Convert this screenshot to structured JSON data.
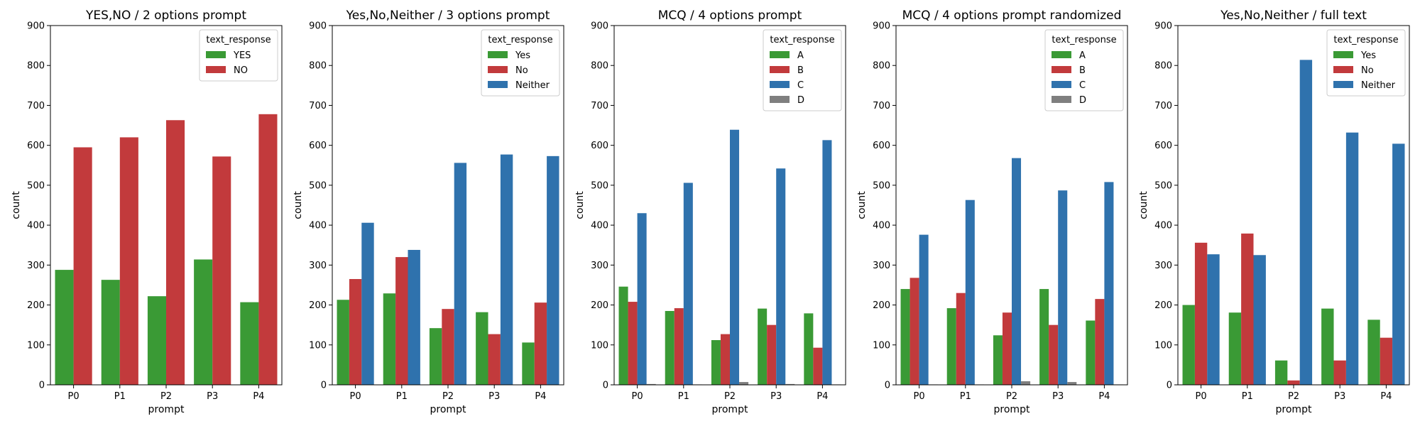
{
  "chart_data": [
    {
      "type": "bar",
      "title": "YES,NO / 2 options prompt",
      "xlabel": "prompt",
      "ylabel": "count",
      "ylim": [
        0,
        900
      ],
      "yticks": [
        0,
        100,
        200,
        300,
        400,
        500,
        600,
        700,
        800,
        900
      ],
      "categories": [
        "P0",
        "P1",
        "P2",
        "P3",
        "P4"
      ],
      "legend_title": "text_response",
      "legend_position": "top-right",
      "series": [
        {
          "name": "YES",
          "color": "#3a9a35",
          "values": [
            288,
            263,
            222,
            314,
            207
          ]
        },
        {
          "name": "NO",
          "color": "#c23a3c",
          "values": [
            595,
            620,
            663,
            572,
            678
          ]
        }
      ]
    },
    {
      "type": "bar",
      "title": "Yes,No,Neither / 3 options prompt",
      "xlabel": "prompt",
      "ylabel": "count",
      "ylim": [
        0,
        900
      ],
      "yticks": [
        0,
        100,
        200,
        300,
        400,
        500,
        600,
        700,
        800,
        900
      ],
      "categories": [
        "P0",
        "P1",
        "P2",
        "P3",
        "P4"
      ],
      "legend_title": "text_response",
      "legend_position": "top-right",
      "series": [
        {
          "name": "Yes",
          "color": "#3a9a35",
          "values": [
            213,
            229,
            142,
            182,
            106
          ]
        },
        {
          "name": "No",
          "color": "#c23a3c",
          "values": [
            265,
            320,
            190,
            127,
            206
          ]
        },
        {
          "name": "Neither",
          "color": "#2f72ad",
          "values": [
            406,
            338,
            556,
            577,
            573
          ]
        }
      ]
    },
    {
      "type": "bar",
      "title": "MCQ / 4 options prompt",
      "xlabel": "prompt",
      "ylabel": "count",
      "ylim": [
        0,
        900
      ],
      "yticks": [
        0,
        100,
        200,
        300,
        400,
        500,
        600,
        700,
        800,
        900
      ],
      "categories": [
        "P0",
        "P1",
        "P2",
        "P3",
        "P4"
      ],
      "legend_title": "text_response",
      "legend_position": "top-right",
      "series": [
        {
          "name": "A",
          "color": "#3a9a35",
          "values": [
            246,
            185,
            112,
            191,
            179
          ]
        },
        {
          "name": "B",
          "color": "#c23a3c",
          "values": [
            208,
            192,
            127,
            150,
            93
          ]
        },
        {
          "name": "C",
          "color": "#2f72ad",
          "values": [
            430,
            506,
            639,
            542,
            613
          ]
        },
        {
          "name": "D",
          "color": "#7f7f7f",
          "values": [
            2,
            1,
            7,
            2,
            1
          ]
        }
      ]
    },
    {
      "type": "bar",
      "title": "MCQ / 4 options prompt randomized",
      "xlabel": "prompt",
      "ylabel": "count",
      "ylim": [
        0,
        900
      ],
      "yticks": [
        0,
        100,
        200,
        300,
        400,
        500,
        600,
        700,
        800,
        900
      ],
      "categories": [
        "P0",
        "P1",
        "P2",
        "P3",
        "P4"
      ],
      "legend_title": "text_response",
      "legend_position": "top-right",
      "series": [
        {
          "name": "A",
          "color": "#3a9a35",
          "values": [
            240,
            192,
            124,
            240,
            161
          ]
        },
        {
          "name": "B",
          "color": "#c23a3c",
          "values": [
            268,
            230,
            181,
            150,
            215
          ]
        },
        {
          "name": "C",
          "color": "#2f72ad",
          "values": [
            376,
            463,
            568,
            487,
            508
          ]
        },
        {
          "name": "D",
          "color": "#7f7f7f",
          "values": [
            1,
            1,
            9,
            7,
            1
          ]
        }
      ]
    },
    {
      "type": "bar",
      "title": "Yes,No,Neither / full text",
      "xlabel": "prompt",
      "ylabel": "count",
      "ylim": [
        0,
        900
      ],
      "yticks": [
        0,
        100,
        200,
        300,
        400,
        500,
        600,
        700,
        800,
        900
      ],
      "categories": [
        "P0",
        "P1",
        "P2",
        "P3",
        "P4"
      ],
      "legend_title": "text_response",
      "legend_position": "top-right",
      "series": [
        {
          "name": "Yes",
          "color": "#3a9a35",
          "values": [
            200,
            181,
            61,
            191,
            163
          ]
        },
        {
          "name": "No",
          "color": "#c23a3c",
          "values": [
            356,
            379,
            11,
            61,
            118
          ]
        },
        {
          "name": "Neither",
          "color": "#2f72ad",
          "values": [
            327,
            325,
            814,
            632,
            604
          ]
        }
      ]
    }
  ]
}
